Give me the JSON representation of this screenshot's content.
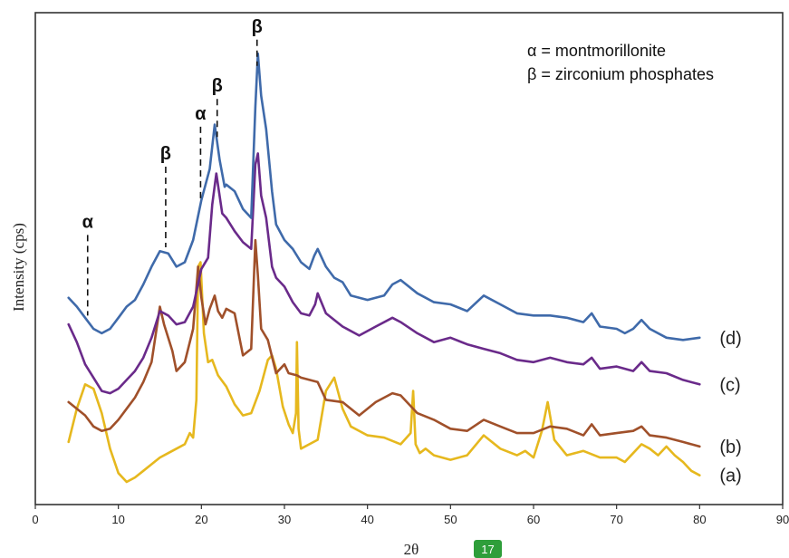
{
  "chart_data": {
    "type": "line",
    "title": "",
    "xlabel": "2θ",
    "ylabel": "Intensity (cps)",
    "xlim": [
      0,
      90
    ],
    "x_ticks": [
      0,
      10,
      20,
      30,
      40,
      50,
      60,
      70,
      80,
      90
    ],
    "y_ticks_shown": false,
    "grid": false,
    "legend": {
      "placement": "top-right",
      "entries": [
        "α = montmorillonite",
        "β = zirconium phosphates"
      ]
    },
    "series": [
      {
        "name": "(a)",
        "color": "#e6b81e",
        "points": [
          [
            4,
            9
          ],
          [
            5,
            24
          ],
          [
            6,
            35
          ],
          [
            7,
            33
          ],
          [
            8,
            22
          ],
          [
            9,
            6
          ],
          [
            10,
            -5
          ],
          [
            11,
            -9
          ],
          [
            12,
            -7
          ],
          [
            13,
            -4
          ],
          [
            14,
            -1
          ],
          [
            15,
            2
          ],
          [
            16,
            4
          ],
          [
            17,
            6
          ],
          [
            18,
            8
          ],
          [
            18.6,
            13
          ],
          [
            19,
            11
          ],
          [
            19.4,
            28
          ],
          [
            19.6,
            88
          ],
          [
            19.9,
            90
          ],
          [
            20.3,
            58
          ],
          [
            20.8,
            45
          ],
          [
            21.3,
            46
          ],
          [
            22,
            39
          ],
          [
            23,
            34
          ],
          [
            24,
            26
          ],
          [
            25,
            21
          ],
          [
            26,
            22
          ],
          [
            27,
            32
          ],
          [
            28,
            46
          ],
          [
            28.5,
            48
          ],
          [
            29,
            42
          ],
          [
            29.8,
            25
          ],
          [
            30.5,
            17
          ],
          [
            31,
            13
          ],
          [
            31.4,
            22
          ],
          [
            31.5,
            54
          ],
          [
            31.7,
            15
          ],
          [
            32,
            6
          ],
          [
            33,
            8
          ],
          [
            34,
            10
          ],
          [
            35,
            32
          ],
          [
            36,
            38
          ],
          [
            37,
            24
          ],
          [
            38,
            16
          ],
          [
            40,
            12
          ],
          [
            42,
            11
          ],
          [
            44,
            8
          ],
          [
            45.2,
            13
          ],
          [
            45.5,
            32
          ],
          [
            45.8,
            8
          ],
          [
            46.3,
            4
          ],
          [
            47,
            6
          ],
          [
            48,
            3
          ],
          [
            50,
            1
          ],
          [
            52,
            3
          ],
          [
            54,
            12
          ],
          [
            56,
            6
          ],
          [
            58,
            3
          ],
          [
            59,
            5
          ],
          [
            60,
            2
          ],
          [
            61,
            14
          ],
          [
            61.7,
            27
          ],
          [
            62.5,
            10
          ],
          [
            64,
            3
          ],
          [
            66,
            5
          ],
          [
            68,
            2
          ],
          [
            70,
            2
          ],
          [
            71,
            0
          ],
          [
            72,
            4
          ],
          [
            73,
            8
          ],
          [
            74,
            6
          ],
          [
            75,
            3
          ],
          [
            76,
            7
          ],
          [
            77,
            3
          ],
          [
            78,
            0
          ],
          [
            79,
            -4
          ],
          [
            80,
            -6
          ]
        ]
      },
      {
        "name": "(b)",
        "color": "#a0502a",
        "points": [
          [
            4,
            27
          ],
          [
            6,
            21
          ],
          [
            7,
            16
          ],
          [
            8,
            14
          ],
          [
            9,
            15
          ],
          [
            10,
            19
          ],
          [
            11,
            24
          ],
          [
            12,
            29
          ],
          [
            13,
            36
          ],
          [
            14,
            45
          ],
          [
            15,
            70
          ],
          [
            15.5,
            62
          ],
          [
            16.5,
            50
          ],
          [
            17,
            41
          ],
          [
            18,
            45
          ],
          [
            19,
            60
          ],
          [
            19.6,
            88
          ],
          [
            20,
            74
          ],
          [
            20.5,
            62
          ],
          [
            21,
            69
          ],
          [
            21.6,
            75
          ],
          [
            22,
            68
          ],
          [
            22.5,
            65
          ],
          [
            23,
            69
          ],
          [
            24,
            67
          ],
          [
            25,
            48
          ],
          [
            26,
            51
          ],
          [
            26.5,
            100
          ],
          [
            26.8,
            84
          ],
          [
            27.2,
            60
          ],
          [
            28,
            55
          ],
          [
            29,
            40
          ],
          [
            30,
            44
          ],
          [
            30.5,
            40
          ],
          [
            31.5,
            39
          ],
          [
            32,
            38
          ],
          [
            34,
            36
          ],
          [
            35,
            28
          ],
          [
            37,
            27
          ],
          [
            39,
            21
          ],
          [
            41,
            27
          ],
          [
            43,
            31
          ],
          [
            44,
            30
          ],
          [
            46,
            22
          ],
          [
            48,
            19
          ],
          [
            50,
            15
          ],
          [
            52,
            14
          ],
          [
            54,
            19
          ],
          [
            56,
            16
          ],
          [
            58,
            13
          ],
          [
            60,
            13
          ],
          [
            62,
            16
          ],
          [
            64,
            15
          ],
          [
            66,
            12
          ],
          [
            67,
            17
          ],
          [
            68,
            12
          ],
          [
            70,
            13
          ],
          [
            72,
            14
          ],
          [
            73,
            16
          ],
          [
            74,
            12
          ],
          [
            76,
            11
          ],
          [
            78,
            9
          ],
          [
            80,
            7
          ]
        ]
      },
      {
        "name": "(c)",
        "color": "#6a2a8a",
        "points": [
          [
            4,
            62
          ],
          [
            5,
            54
          ],
          [
            6,
            44
          ],
          [
            7,
            38
          ],
          [
            8,
            32
          ],
          [
            9,
            31
          ],
          [
            10,
            33
          ],
          [
            11,
            37
          ],
          [
            12,
            41
          ],
          [
            13,
            47
          ],
          [
            14,
            56
          ],
          [
            15,
            68
          ],
          [
            16,
            66
          ],
          [
            17,
            62
          ],
          [
            18,
            63
          ],
          [
            19,
            70
          ],
          [
            20,
            87
          ],
          [
            20.8,
            92
          ],
          [
            21.3,
            116
          ],
          [
            21.8,
            130
          ],
          [
            22.5,
            112
          ],
          [
            23,
            110
          ],
          [
            24,
            104
          ],
          [
            25,
            99
          ],
          [
            26,
            96
          ],
          [
            26.5,
            134
          ],
          [
            26.8,
            139
          ],
          [
            27.2,
            120
          ],
          [
            27.8,
            110
          ],
          [
            28.5,
            88
          ],
          [
            29,
            83
          ],
          [
            30,
            79
          ],
          [
            31,
            72
          ],
          [
            32,
            67
          ],
          [
            33,
            66
          ],
          [
            33.7,
            71
          ],
          [
            34,
            76
          ],
          [
            35,
            67
          ],
          [
            37,
            61
          ],
          [
            39,
            57
          ],
          [
            41,
            61
          ],
          [
            43,
            65
          ],
          [
            44,
            63
          ],
          [
            46,
            58
          ],
          [
            48,
            54
          ],
          [
            50,
            56
          ],
          [
            52,
            53
          ],
          [
            54,
            51
          ],
          [
            56,
            49
          ],
          [
            58,
            46
          ],
          [
            60,
            45
          ],
          [
            62,
            47
          ],
          [
            64,
            45
          ],
          [
            66,
            44
          ],
          [
            67,
            47
          ],
          [
            68,
            42
          ],
          [
            70,
            43
          ],
          [
            72,
            41
          ],
          [
            73,
            45
          ],
          [
            74,
            41
          ],
          [
            76,
            40
          ],
          [
            78,
            37
          ],
          [
            80,
            35
          ]
        ]
      },
      {
        "name": "(d)",
        "color": "#3f6aaa",
        "points": [
          [
            4,
            74
          ],
          [
            5,
            70
          ],
          [
            6,
            65
          ],
          [
            7,
            60
          ],
          [
            8,
            58
          ],
          [
            9,
            60
          ],
          [
            10,
            65
          ],
          [
            11,
            70
          ],
          [
            12,
            73
          ],
          [
            13,
            80
          ],
          [
            14,
            88
          ],
          [
            15,
            95
          ],
          [
            16,
            94
          ],
          [
            17,
            88
          ],
          [
            18,
            90
          ],
          [
            19,
            100
          ],
          [
            20,
            118
          ],
          [
            21,
            132
          ],
          [
            21.6,
            152
          ],
          [
            22.2,
            136
          ],
          [
            22.8,
            124
          ],
          [
            23,
            125
          ],
          [
            24,
            122
          ],
          [
            25,
            114
          ],
          [
            26,
            110
          ],
          [
            26.5,
            160
          ],
          [
            26.8,
            184
          ],
          [
            27.2,
            165
          ],
          [
            27.8,
            150
          ],
          [
            28.5,
            122
          ],
          [
            29,
            107
          ],
          [
            30,
            100
          ],
          [
            31,
            96
          ],
          [
            32,
            90
          ],
          [
            33,
            87
          ],
          [
            33.6,
            93
          ],
          [
            34,
            96
          ],
          [
            35,
            88
          ],
          [
            36,
            83
          ],
          [
            37,
            81
          ],
          [
            38,
            75
          ],
          [
            40,
            73
          ],
          [
            42,
            75
          ],
          [
            43,
            80
          ],
          [
            44,
            82
          ],
          [
            46,
            76
          ],
          [
            48,
            72
          ],
          [
            50,
            71
          ],
          [
            52,
            68
          ],
          [
            54,
            75
          ],
          [
            56,
            71
          ],
          [
            58,
            67
          ],
          [
            60,
            66
          ],
          [
            62,
            66
          ],
          [
            64,
            65
          ],
          [
            66,
            63
          ],
          [
            67,
            67
          ],
          [
            68,
            61
          ],
          [
            70,
            60
          ],
          [
            71,
            58
          ],
          [
            72,
            60
          ],
          [
            73,
            64
          ],
          [
            74,
            60
          ],
          [
            76,
            56
          ],
          [
            78,
            55
          ],
          [
            80,
            56
          ]
        ]
      }
    ],
    "peak_markers": [
      {
        "label": "α",
        "x": 6.3
      },
      {
        "label": "β",
        "x": 15.7
      },
      {
        "label": "α",
        "x": 19.9
      },
      {
        "label": "β",
        "x": 21.9
      },
      {
        "label": "β",
        "x": 26.7
      }
    ]
  },
  "badge": "17"
}
